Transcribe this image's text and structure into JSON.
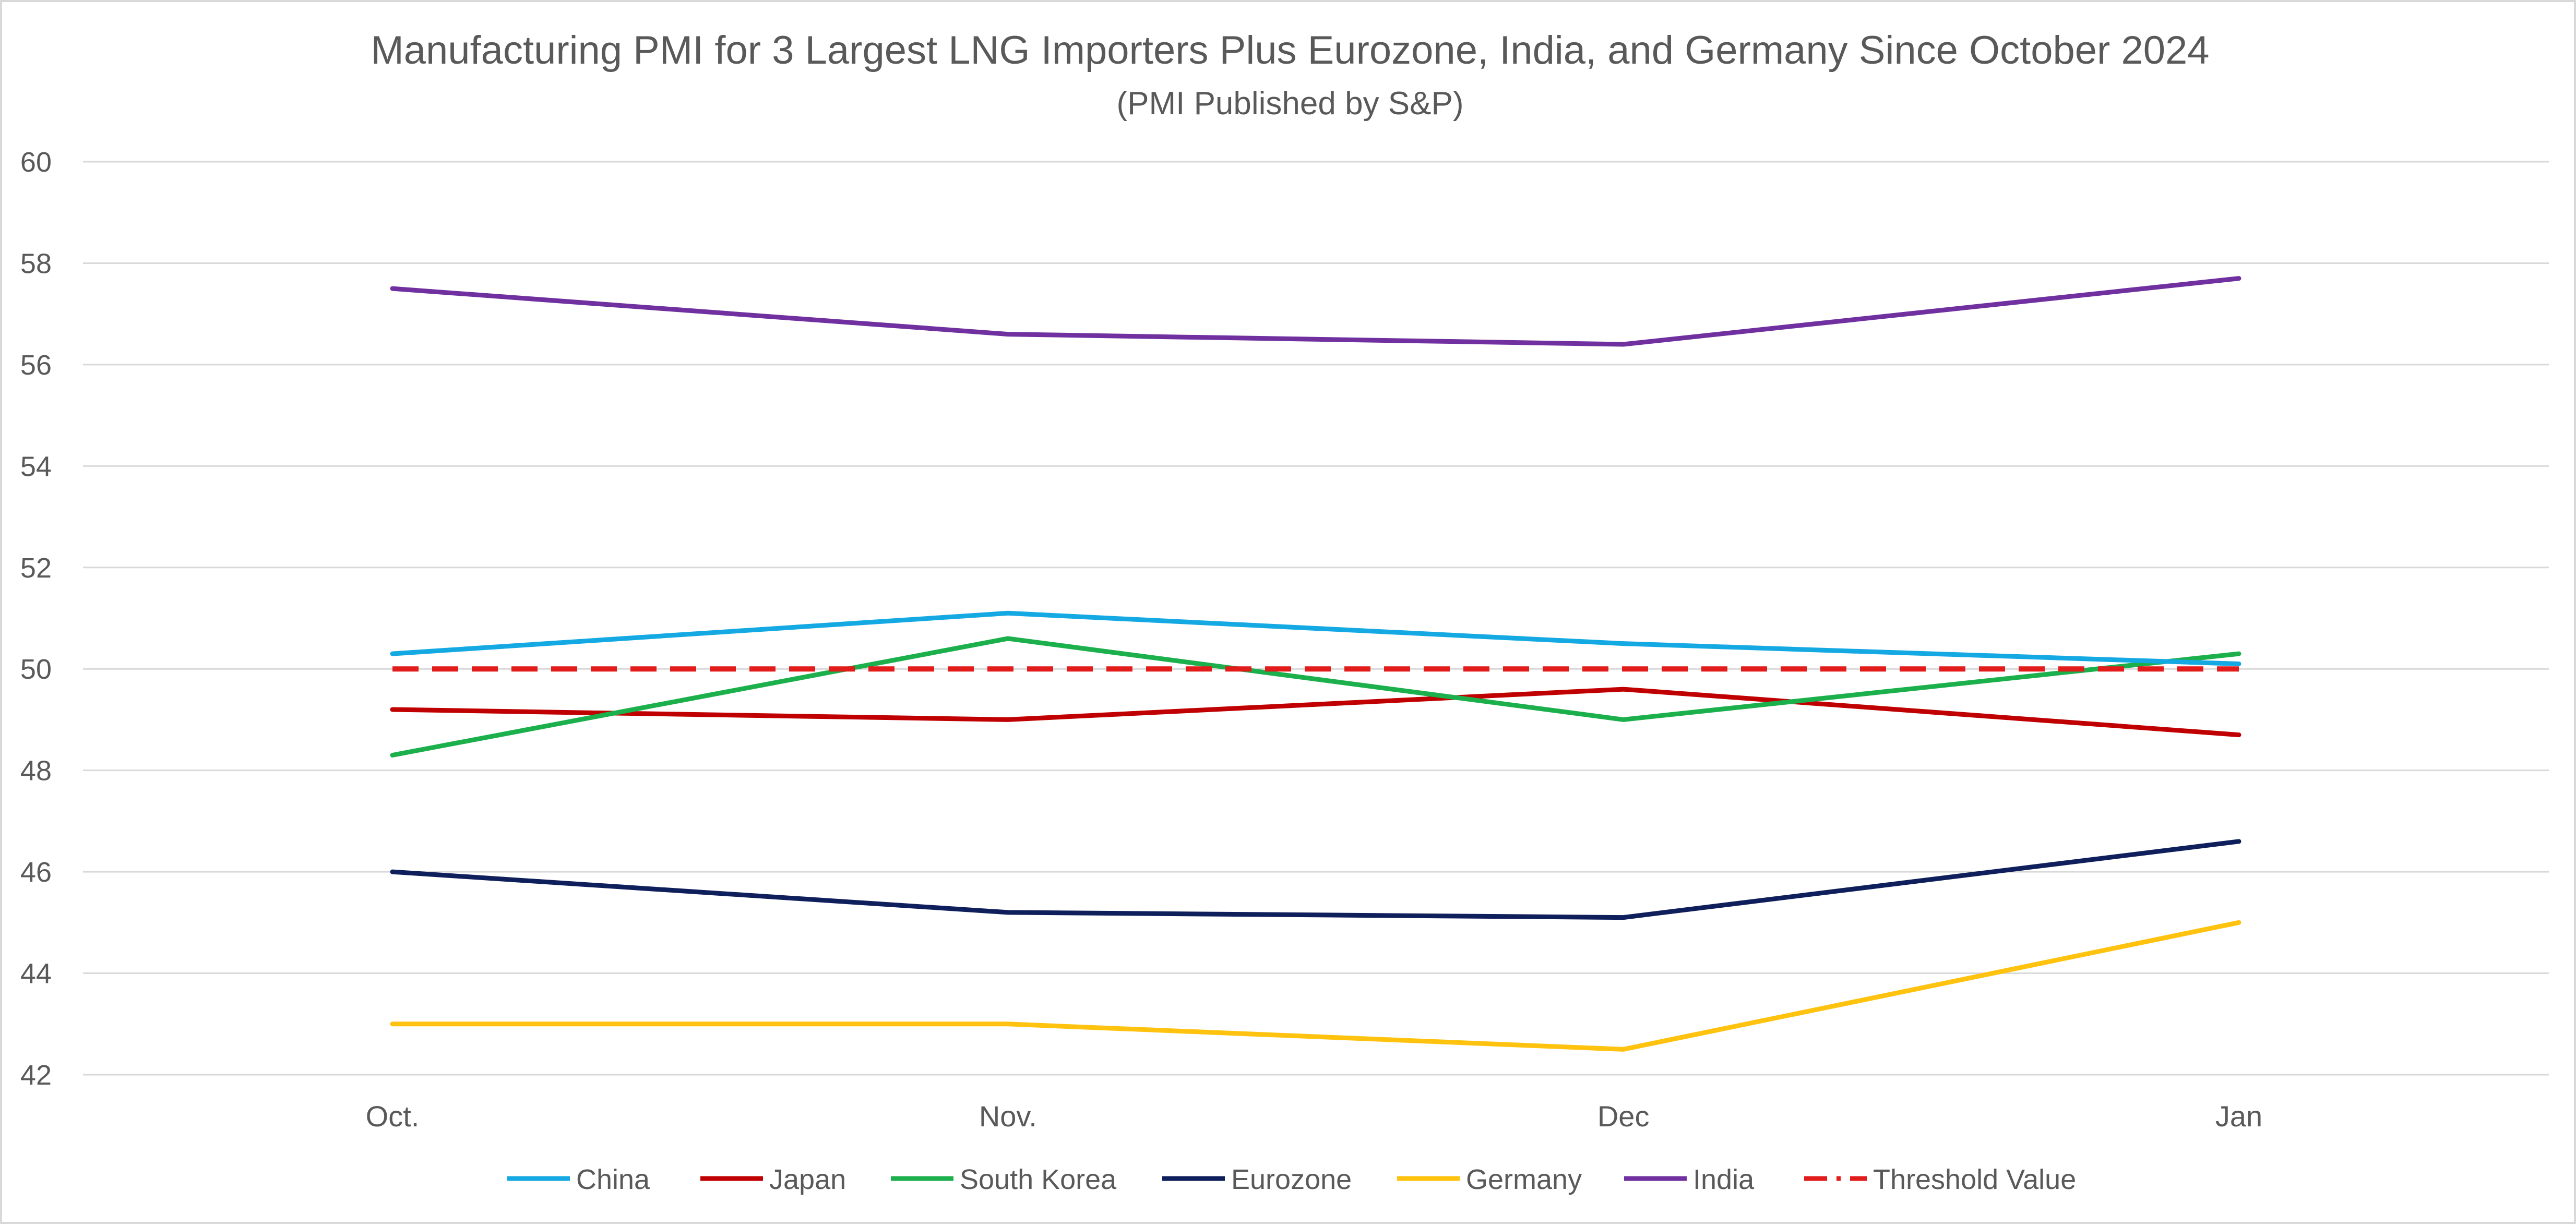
{
  "chart_data": {
    "type": "line",
    "title": "Manufacturing PMI for 3 Largest LNG Importers Plus Eurozone, India, and Germany Since October 2024",
    "subtitle": "(PMI Published by S&P)",
    "xlabel": "",
    "ylabel": "",
    "categories": [
      "Oct.",
      "Nov.",
      "Dec",
      "Jan"
    ],
    "ylim": [
      42,
      60
    ],
    "yticks": [
      42,
      44,
      46,
      48,
      50,
      52,
      54,
      56,
      58,
      60
    ],
    "grid": true,
    "legend_position": "bottom",
    "series": [
      {
        "name": "China",
        "color": "#14a9e2",
        "dashed": false,
        "values": [
          50.3,
          51.1,
          50.5,
          50.1
        ]
      },
      {
        "name": "Japan",
        "color": "#c00000",
        "dashed": false,
        "values": [
          49.2,
          49.0,
          49.6,
          48.7
        ]
      },
      {
        "name": "South Korea",
        "color": "#1cb04c",
        "dashed": false,
        "values": [
          48.3,
          50.6,
          49.0,
          50.3
        ]
      },
      {
        "name": "Eurozone",
        "color": "#0e1f5b",
        "dashed": false,
        "values": [
          46.0,
          45.2,
          45.1,
          46.6
        ]
      },
      {
        "name": "Germany",
        "color": "#ffc20e",
        "dashed": false,
        "values": [
          43.0,
          43.0,
          42.5,
          45.0
        ]
      },
      {
        "name": "India",
        "color": "#7030a0",
        "dashed": false,
        "values": [
          57.5,
          56.6,
          56.4,
          57.7
        ]
      },
      {
        "name": "Threshold Value",
        "color": "#e21b1b",
        "dashed": true,
        "values": [
          50.0,
          50.0,
          50.0,
          50.0
        ]
      }
    ]
  }
}
